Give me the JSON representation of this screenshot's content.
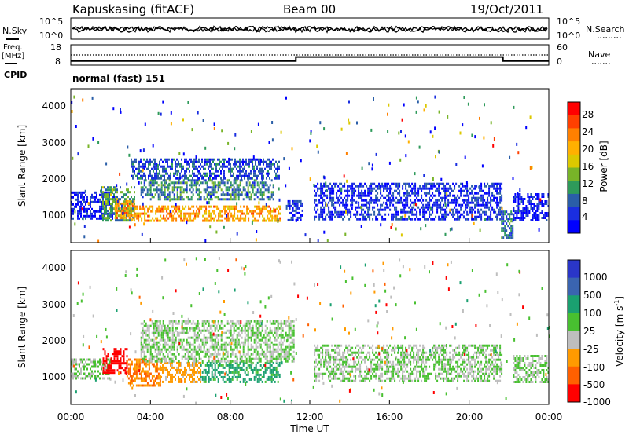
{
  "header": {
    "station": "Kapuskasing (fitACF)",
    "beam": "Beam 00",
    "date": "19/Oct/2011"
  },
  "noise": {
    "left_label": "N.Sky",
    "right_label": "N.Search",
    "left_ticks": [
      "10^5",
      "10^0"
    ],
    "right_ticks": [
      "10^5",
      "10^0"
    ]
  },
  "freq": {
    "left_label_1": "Freq.",
    "left_label_2": "[MHz]",
    "left_ticks": [
      "18",
      "8"
    ],
    "right_label": "Nave",
    "right_ticks": [
      "60",
      "0"
    ]
  },
  "cpid": {
    "label": "CPID",
    "value": "normal (fast) 151"
  },
  "power_panel": {
    "ylabel": "Slant Range [km]",
    "yticks": [
      "4000",
      "3000",
      "2000",
      "1000"
    ]
  },
  "velocity_panel": {
    "ylabel": "Slant Range [km]",
    "yticks": [
      "4000",
      "3000",
      "2000",
      "1000"
    ]
  },
  "xaxis": {
    "label": "Time UT",
    "ticks": [
      "00:00",
      "04:00",
      "08:00",
      "12:00",
      "16:00",
      "20:00",
      "00:00"
    ]
  },
  "power_colorbar": {
    "label": "Power [dB]",
    "ticks": [
      "28",
      "24",
      "20",
      "16",
      "12",
      "8",
      "4"
    ],
    "colors": [
      "#ff0000",
      "#ff4000",
      "#ff8000",
      "#ffb000",
      "#dcc800",
      "#78b428",
      "#2e9a5a",
      "#2a5ea8",
      "#1a2ee0",
      "#0000ff"
    ]
  },
  "velocity_colorbar": {
    "label": "Velocity [m s",
    "label_sup": "-1",
    "label_end": "]",
    "ticks": [
      "1000",
      "500",
      "100",
      "25",
      "-25",
      "-100",
      "-500",
      "-1000"
    ],
    "colors": [
      "#2a36c8",
      "#3a64b0",
      "#1aa070",
      "#48c030",
      "#bebebe",
      "#ff9a00",
      "#ff6000",
      "#ff0000"
    ]
  },
  "chart_data": [
    {
      "type": "line",
      "title": "Kapuskasing (fitACF)",
      "series": [
        {
          "name": "N.Sky"
        },
        {
          "name": "N.Search"
        }
      ],
      "xlim_hours": [
        0,
        24
      ],
      "description_values": {
        "noise_level_log10": [
          2.5,
          2.2
        ]
      }
    },
    {
      "type": "line",
      "series": [
        {
          "name": "Freq",
          "x_hours": [
            0,
            11.3,
            11.3,
            21.7,
            21.7,
            24
          ],
          "values": [
            10,
            10,
            12,
            12,
            10,
            10
          ]
        },
        {
          "name": "Nave",
          "x_hours": [
            0,
            24
          ],
          "values": [
            30,
            30
          ]
        }
      ],
      "ylim_left": [
        8,
        18
      ],
      "ylim_right": [
        0,
        60
      ]
    },
    {
      "type": "heatmap",
      "xlabel": "Time UT",
      "ylabel": "Slant Range [km]",
      "colorbar": "Power [dB]",
      "xlim_hours": [
        0,
        24
      ],
      "ylim_km": [
        180,
        4600
      ],
      "clim": [
        3,
        32
      ],
      "blobs": [
        {
          "t": [
            0,
            2.2
          ],
          "r": [
            850,
            1650
          ],
          "v": 6
        },
        {
          "t": [
            1.5,
            3.2
          ],
          "r": [
            800,
            1800
          ],
          "v": 14
        },
        {
          "t": [
            2.2,
            3.2
          ],
          "r": [
            900,
            1400
          ],
          "v": 24
        },
        {
          "t": [
            3.2,
            10.5
          ],
          "r": [
            800,
            1250
          ],
          "v": 23
        },
        {
          "t": [
            3.5,
            10.2
          ],
          "r": [
            1400,
            2000
          ],
          "v": 12
        },
        {
          "t": [
            3.0,
            10.5
          ],
          "r": [
            2000,
            2600
          ],
          "v": 9
        },
        {
          "t": [
            10.8,
            11.6
          ],
          "r": [
            800,
            1400
          ],
          "v": 8
        },
        {
          "t": [
            12.2,
            21.6
          ],
          "r": [
            850,
            1900
          ],
          "v": 7
        },
        {
          "t": [
            21.6,
            22.2
          ],
          "r": [
            300,
            1100
          ],
          "v": 11
        },
        {
          "t": [
            22.2,
            24
          ],
          "r": [
            800,
            1600
          ],
          "v": 6
        }
      ]
    },
    {
      "type": "heatmap",
      "xlabel": "Time UT",
      "ylabel": "Slant Range [km]",
      "colorbar": "Velocity [m s-1]",
      "xlim_hours": [
        0,
        24
      ],
      "ylim_km": [
        180,
        4600
      ],
      "clim": [
        -1000,
        1000
      ],
      "blobs": [
        {
          "t": [
            0,
            2.0
          ],
          "r": [
            900,
            1500
          ],
          "v": 0
        },
        {
          "t": [
            1.6,
            2.8
          ],
          "r": [
            1100,
            1800
          ],
          "v": -900
        },
        {
          "t": [
            2.8,
            4.5
          ],
          "r": [
            700,
            1500
          ],
          "v": -300
        },
        {
          "t": [
            4.5,
            6.5
          ],
          "r": [
            800,
            1400
          ],
          "v": -80
        },
        {
          "t": [
            6.5,
            10.5
          ],
          "r": [
            800,
            1400
          ],
          "v": 80
        },
        {
          "t": [
            3.5,
            11.2
          ],
          "r": [
            1400,
            2600
          ],
          "v": 0
        },
        {
          "t": [
            12.2,
            21.6
          ],
          "r": [
            850,
            1900
          ],
          "v": 0
        },
        {
          "t": [
            22.2,
            24
          ],
          "r": [
            800,
            1600
          ],
          "v": 0
        }
      ]
    }
  ]
}
